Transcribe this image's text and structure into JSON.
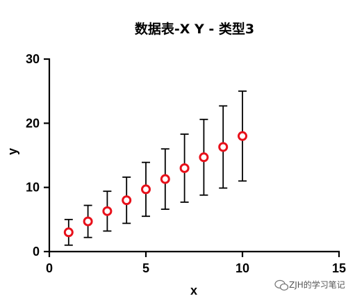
{
  "chart_data": {
    "type": "scatter",
    "title": "数据表-X Y - 类型3",
    "xlabel": "x",
    "ylabel": "y",
    "xlim": [
      0,
      15
    ],
    "ylim": [
      0,
      30
    ],
    "xticks": [
      0,
      5,
      10,
      15
    ],
    "yticks": [
      0,
      10,
      20,
      30
    ],
    "grid": false,
    "marker_color": "#e8101a",
    "series": [
      {
        "x": [
          1,
          2,
          3,
          4,
          5,
          6,
          7,
          8,
          9,
          10
        ],
        "y": [
          3.0,
          4.7,
          6.3,
          8.0,
          9.7,
          11.3,
          13.0,
          14.7,
          16.3,
          18.0
        ],
        "err_low": [
          1.0,
          2.2,
          3.2,
          4.4,
          5.5,
          6.6,
          7.7,
          8.8,
          9.9,
          11.0
        ],
        "err_high": [
          5.0,
          7.2,
          9.4,
          11.6,
          13.9,
          16.0,
          18.3,
          20.6,
          22.7,
          25.0
        ]
      }
    ]
  },
  "watermark": {
    "icon": "wechat-icon",
    "text": "ZJH的学习笔记"
  }
}
